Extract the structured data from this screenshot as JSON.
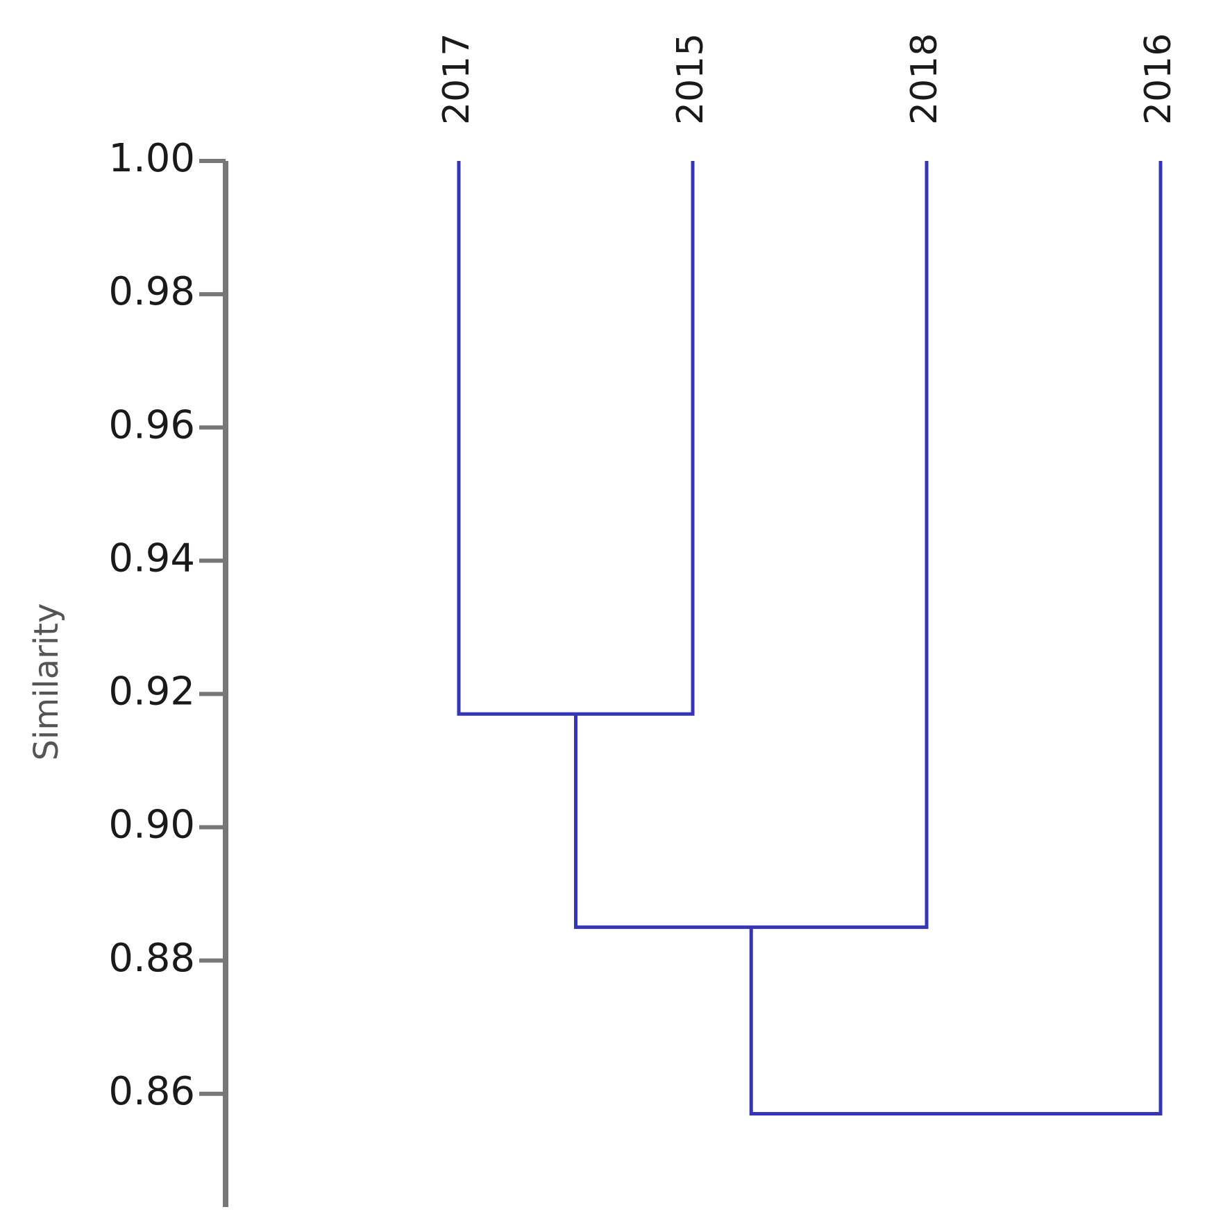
{
  "chart_data": {
    "type": "dendrogram",
    "y_label": "Similarity",
    "leaves": [
      "2017",
      "2015",
      "2018",
      "2016"
    ],
    "merges": [
      {
        "children": [
          0,
          1
        ],
        "value": 0.917
      },
      {
        "children": [
          4,
          2
        ],
        "value": 0.885
      },
      {
        "children": [
          5,
          3
        ],
        "value": 0.857
      }
    ],
    "color": "#3535b8",
    "axis_color": "#777777",
    "ylim": [
      0.843,
      1.0
    ],
    "yticks": [
      {
        "value": 1.0,
        "label": "1.00"
      },
      0.98,
      0.96,
      0.94,
      0.92,
      {
        "value": 0.9,
        "label": "0.90"
      },
      0.88,
      0.86
    ]
  }
}
